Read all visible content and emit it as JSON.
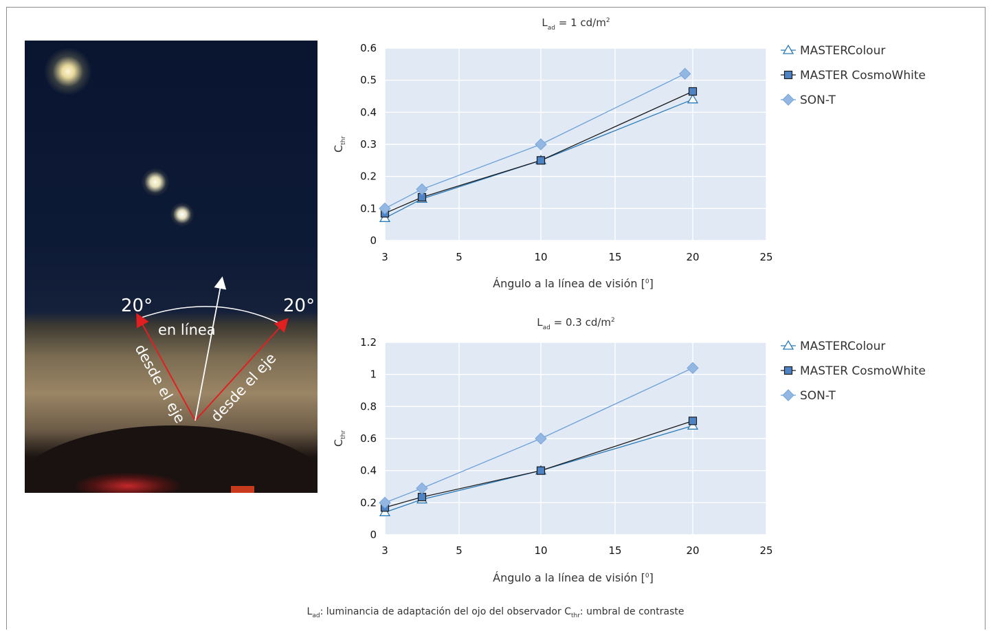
{
  "photo": {
    "arrow_left_label": "20°",
    "arrow_right_label": "20°",
    "center_label": "en línea",
    "left_ray_label": "desde el eje",
    "right_ray_label": "desde el eje",
    "colors": {
      "offaxis_arrow": "#e02020",
      "center_arrow": "#ffffff",
      "arc": "#ffffff"
    }
  },
  "legend_items": [
    "MASTERColour",
    "MASTER CosmoWhite",
    "SON-T"
  ],
  "series_styles": [
    {
      "name": "MASTERColour",
      "marker": "triangle-open",
      "line": "#2a7ab8",
      "marker_color": "#2a7ab8"
    },
    {
      "name": "MASTER CosmoWhite",
      "marker": "square",
      "line": "#1a1a1a",
      "marker_color": "#4f84c4"
    },
    {
      "name": "SON-T",
      "marker": "diamond",
      "line": "#6a9fd8",
      "marker_color": "#93b7e3"
    }
  ],
  "plot_bg": "#e1e9f5",
  "chart_data": [
    {
      "type": "line",
      "title_main": "L",
      "title_sub": "ad",
      "title_rest": " = 1 cd/m",
      "title_sup": "2",
      "ylabel_main": "C",
      "ylabel_sub": "thr",
      "xlabel": "Ángulo a la línea de visión [",
      "xlabel_sup": "0",
      "xlabel_end": "]",
      "xticks": [
        "3",
        "5",
        "10",
        "15",
        "20",
        "25"
      ],
      "yticks": [
        "0",
        "0.1",
        "0.2",
        "0.3",
        "0.4",
        "0.5",
        "0.6"
      ],
      "ylim": [
        0,
        0.6
      ],
      "series": [
        {
          "name": "MASTERColour",
          "x": [
            3,
            4,
            10,
            20
          ],
          "y": [
            0.07,
            0.13,
            0.25,
            0.44
          ]
        },
        {
          "name": "MASTER CosmoWhite",
          "x": [
            3,
            4,
            10,
            20
          ],
          "y": [
            0.085,
            0.135,
            0.25,
            0.465
          ]
        },
        {
          "name": "SON-T",
          "x": [
            3,
            4,
            10,
            19.5
          ],
          "y": [
            0.1,
            0.16,
            0.3,
            0.52
          ]
        }
      ]
    },
    {
      "type": "line",
      "title_main": "L",
      "title_sub": "ad",
      "title_rest": " = 0.3 cd/m",
      "title_sup": "2",
      "ylabel_main": "C",
      "ylabel_sub": "thr",
      "xlabel": "Ángulo a la línea de visión [",
      "xlabel_sup": "0",
      "xlabel_end": "]",
      "xticks": [
        "3",
        "5",
        "10",
        "15",
        "20",
        "25"
      ],
      "yticks": [
        "0",
        "0.2",
        "0.4",
        "0.6",
        "0.8",
        "1",
        "1.2"
      ],
      "ylim": [
        0,
        1.2
      ],
      "series": [
        {
          "name": "MASTERColour",
          "x": [
            3,
            4,
            10,
            20
          ],
          "y": [
            0.14,
            0.22,
            0.4,
            0.68
          ]
        },
        {
          "name": "MASTER CosmoWhite",
          "x": [
            3,
            4,
            10,
            20
          ],
          "y": [
            0.17,
            0.235,
            0.4,
            0.71
          ]
        },
        {
          "name": "SON-T",
          "x": [
            3,
            4,
            10,
            20
          ],
          "y": [
            0.2,
            0.29,
            0.6,
            1.04
          ]
        }
      ]
    }
  ],
  "footnote": {
    "l": "L",
    "l_sub": "ad",
    "text1": ": luminancia de adaptación del ojo del observador ",
    "c": "C",
    "c_sub": "thr",
    "text2": ": umbral de contraste"
  }
}
